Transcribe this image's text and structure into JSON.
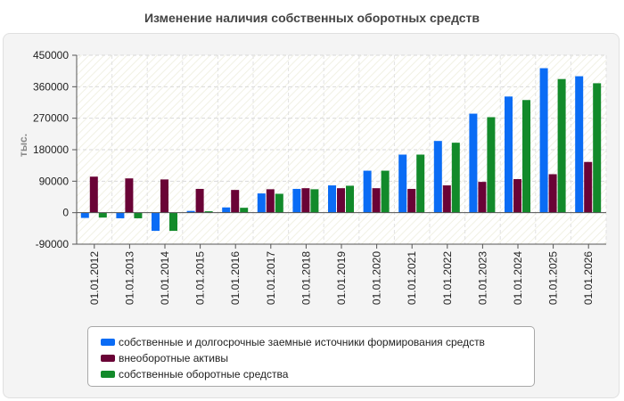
{
  "chart_data": {
    "type": "bar",
    "title": "Изменение наличия собственных оборотных средств",
    "ylabel": "тыс.",
    "xlabel": "",
    "ylim": [
      -90000,
      450000
    ],
    "yticks": [
      "450000",
      "360000",
      "270000",
      "180000",
      "90000",
      "0",
      "-90000"
    ],
    "ytick_values": [
      450000,
      360000,
      270000,
      180000,
      90000,
      0,
      -90000
    ],
    "grid": true,
    "legend_position": "bottom",
    "categories": [
      "01.01.2012",
      "01.01.2013",
      "01.01.2014",
      "01.01.2015",
      "01.01.2016",
      "01.01.2017",
      "01.01.2018",
      "01.01.2019",
      "01.01.2020",
      "01.01.2021",
      "01.01.2022",
      "01.01.2023",
      "01.01.2024",
      "01.01.2025",
      "01.01.2026"
    ],
    "series": [
      {
        "name": "собственные и долгосрочные заемные источники формирования средств",
        "color": "#0a6cf5",
        "values": [
          -15000,
          -16000,
          -52000,
          5000,
          15000,
          55000,
          68000,
          78000,
          120000,
          166000,
          205000,
          283000,
          332000,
          413000,
          390000
        ]
      },
      {
        "name": "внеоборотные активы",
        "color": "#6a0336",
        "values": [
          103000,
          98000,
          95000,
          68000,
          65000,
          67000,
          70000,
          70000,
          70000,
          68000,
          78000,
          88000,
          96000,
          110000,
          145000
        ]
      },
      {
        "name": "собственные оборотные средства",
        "color": "#128a2a",
        "values": [
          -14000,
          -16000,
          -52000,
          4000,
          14000,
          54000,
          67000,
          77000,
          120000,
          166000,
          200000,
          273000,
          322000,
          382000,
          370000
        ]
      }
    ]
  }
}
